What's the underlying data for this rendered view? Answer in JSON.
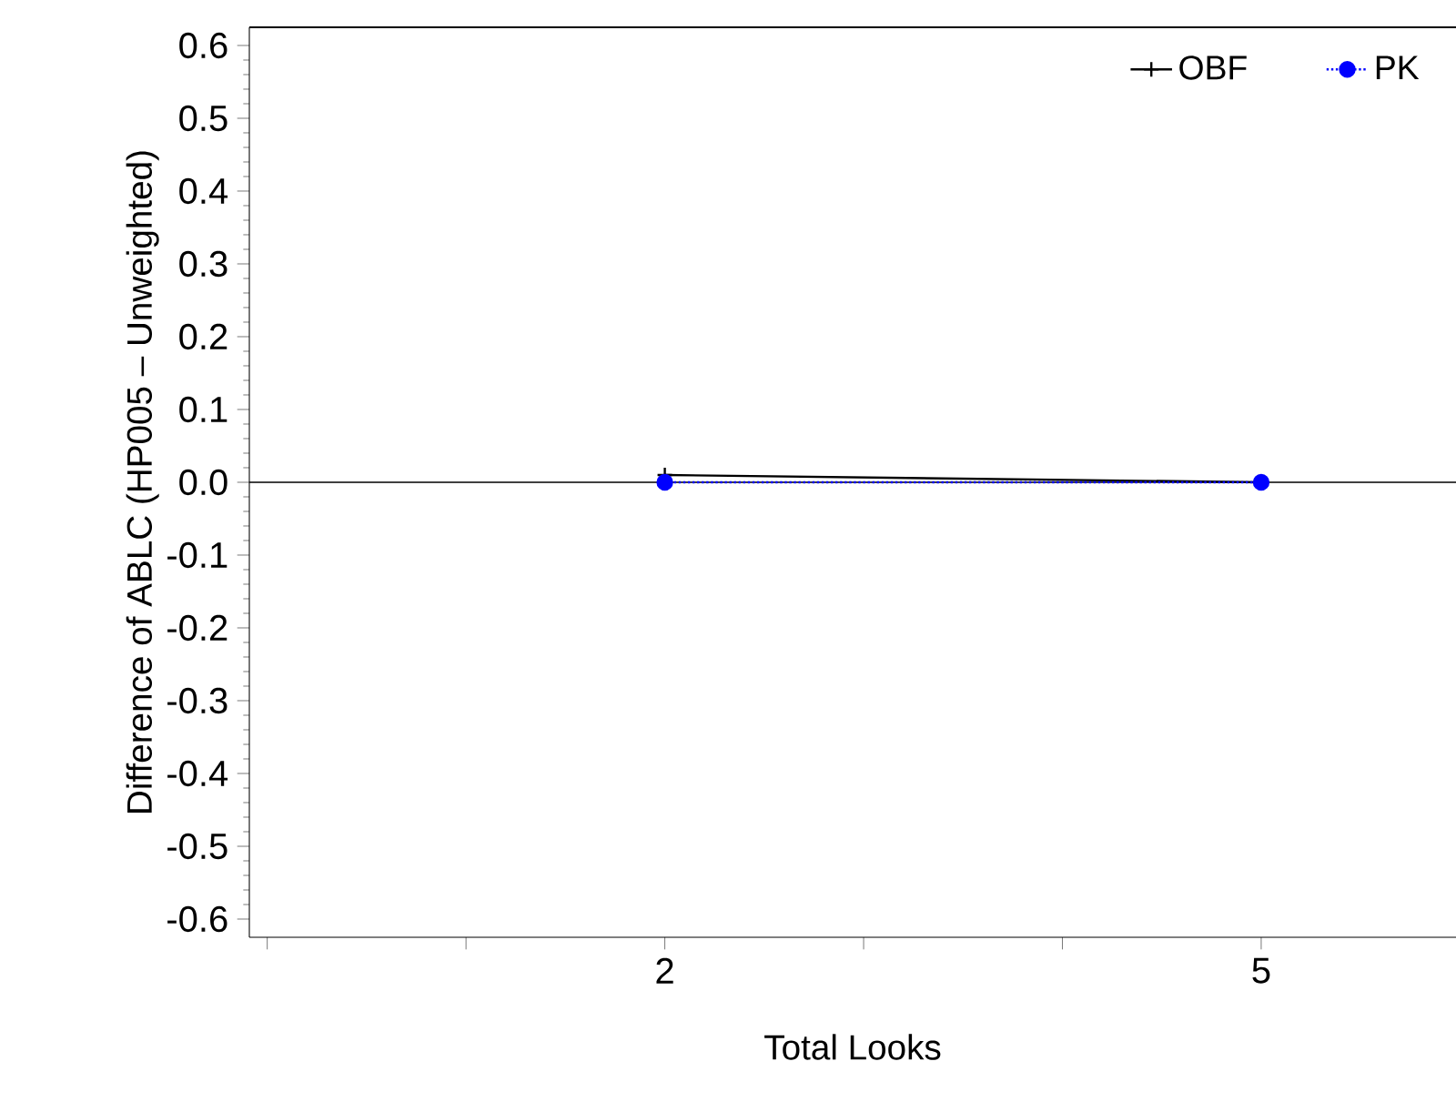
{
  "chart_data": {
    "type": "line",
    "xlabel": "Total Looks",
    "ylabel": "Difference of ABLC (HP005 – Unweighted)",
    "xlim": [
      -0.09,
      5.98
    ],
    "xticks": [
      {
        "value": 0,
        "label": null
      },
      {
        "value": 1,
        "label": null
      },
      2,
      {
        "value": 3,
        "label": null
      },
      {
        "value": 4,
        "label": null
      },
      5
    ],
    "ylim": [
      -0.625,
      0.625
    ],
    "yticks": [
      -0.6,
      -0.5,
      -0.4,
      -0.3,
      -0.2,
      -0.1,
      {
        "value": 0,
        "label": "0.0"
      },
      0.1,
      0.2,
      0.3,
      0.4,
      0.5,
      0.6
    ],
    "ref_lines": [
      {
        "axis": "y",
        "value": 0,
        "color": "#000000",
        "line_style": "solid"
      }
    ],
    "legend": "top right",
    "x": [
      2,
      5
    ],
    "series": [
      {
        "name": "OBF",
        "color": "#000000",
        "values": [
          0.01,
          0.0
        ],
        "marker": "cross",
        "line_style": "solid"
      },
      {
        "name": "PK",
        "color": "#0000ff",
        "values": [
          0.0,
          0.0
        ],
        "marker": "circle",
        "line_style": "dotted"
      }
    ]
  }
}
